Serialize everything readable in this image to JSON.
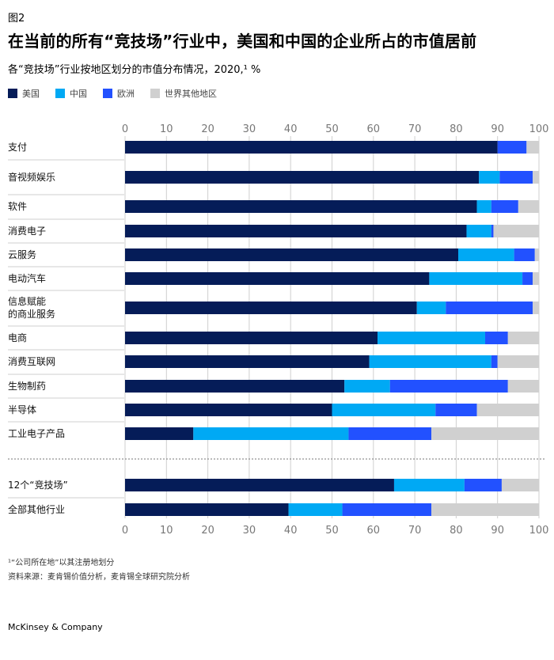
{
  "figure_label": "图2",
  "title": "在当前的所有“竞技场”行业中，美国和中国的企业所占的市值居前",
  "subtitle": "各“竞技场”行业按地区划分的市值分布情况，2020,¹ %",
  "footnotes": [
    "¹“公司所在地”以其注册地划分",
    "资料来源：麦肯锡价值分析，麦肯锡全球研究院分析"
  ],
  "brand": "McKinsey & Company",
  "colors": {
    "us": "#051c58",
    "china": "#00a9f4",
    "europe": "#2251ff",
    "rest": "#d0d0d0",
    "grid": "#cfcfcf",
    "separator": "#777777"
  },
  "chart_data": {
    "type": "bar",
    "orientation": "horizontal",
    "stacked": true,
    "xlim": [
      0,
      100
    ],
    "xticks": [
      0,
      10,
      20,
      30,
      40,
      50,
      60,
      70,
      80,
      90,
      100
    ],
    "legend": [
      "美国",
      "中国",
      "欧洲",
      "世界其他地区"
    ],
    "legend_position": "top-left",
    "grid": true,
    "categories": [
      "支付",
      "音视频娱乐",
      "软件",
      "消费电子",
      "云服务",
      "电动汽车",
      "信息赋能的商业服务",
      "电商",
      "消费互联网",
      "生物制药",
      "半导体",
      "工业电子产品"
    ],
    "category_labels": [
      [
        "支付"
      ],
      [
        "音视频娱乐"
      ],
      [
        "软件"
      ],
      [
        "消费电子"
      ],
      [
        "云服务"
      ],
      [
        "电动汽车"
      ],
      [
        "信息赋能",
        "的商业服务"
      ],
      [
        "电商"
      ],
      [
        "消费互联网"
      ],
      [
        "生物制药"
      ],
      [
        "半导体"
      ],
      [
        "工业电子产品"
      ]
    ],
    "series": [
      {
        "name": "美国",
        "values": [
          90,
          85.5,
          85,
          82.5,
          80.5,
          73.5,
          70.5,
          61,
          59,
          53,
          50,
          16.5
        ]
      },
      {
        "name": "中国",
        "values": [
          0,
          5,
          3.5,
          6,
          13.5,
          22.5,
          7,
          26,
          29.5,
          11,
          25,
          37.5
        ]
      },
      {
        "name": "欧洲",
        "values": [
          7,
          8,
          6.5,
          0.5,
          5,
          2.5,
          21,
          5.5,
          1.5,
          28.5,
          10,
          20
        ]
      },
      {
        "name": "世界其他地区",
        "values": [
          3,
          1.5,
          5,
          11,
          1,
          1.5,
          1.5,
          7.5,
          10,
          7.5,
          15,
          26
        ]
      }
    ],
    "summary": {
      "categories": [
        "12个“竞技场”",
        "全部其他行业"
      ],
      "series": [
        {
          "name": "美国",
          "values": [
            65,
            39.5
          ]
        },
        {
          "name": "中国",
          "values": [
            17,
            13
          ]
        },
        {
          "name": "欧洲",
          "values": [
            9,
            21.5
          ]
        },
        {
          "name": "世界其他地区",
          "values": [
            9,
            26
          ]
        }
      ]
    }
  }
}
